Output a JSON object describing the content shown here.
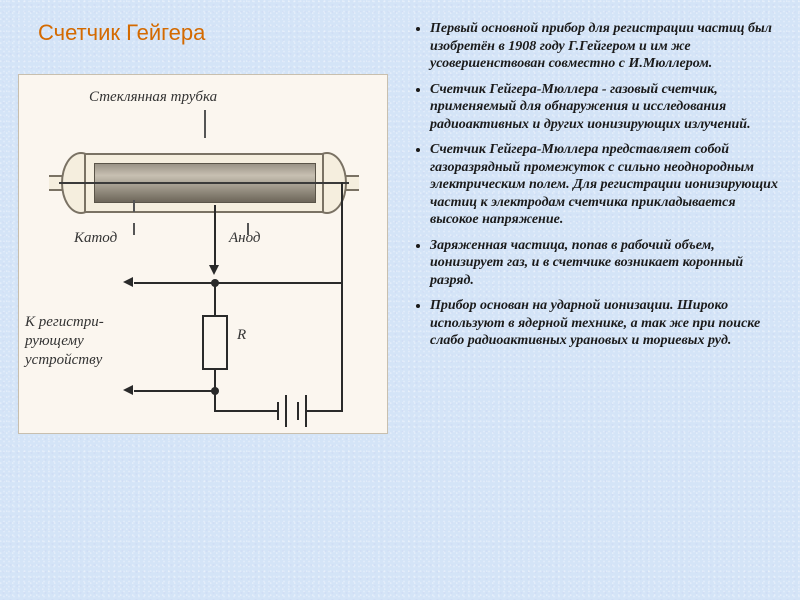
{
  "title": {
    "text": "Счетчик Гейгера",
    "color": "#d46a00"
  },
  "diagram": {
    "bg": "#fbf6ef",
    "labels": {
      "tube": "Стеклянная трубка",
      "cathode": "Катод",
      "anode": "Анод",
      "R": "R",
      "register": "К регистри-\nрующему\nустройству"
    },
    "colors": {
      "wire": "#2a2a2a",
      "tube_border": "#7a7264",
      "cathode_grad_top": "#9a9386",
      "cathode_grad_mid": "#c7c0b2",
      "cathode_grad_bot": "#6d6659"
    }
  },
  "bullets": [
    "Первый основной прибор для регистрации частиц был изобретён в 1908 году Г.Гейгером и им же усовершенствован совместно с И.Мюллером.",
    "Счетчик Гейгера-Мюллера - газовый счетчик, применяемый для обнаружения и исследования радиоактивных и других ионизирующих излучений.",
    "Счетчик Гейгера-Мюллера представляет собой газоразрядный промежуток с сильно неоднородным электрическим полем. Для регистрации ионизирующих частиц к электродам счетчика прикладывается высокое напряжение.",
    "Заряженная частица, попав в рабочий объем, ионизирует газ, и в счетчике возникает коронный разряд.",
    "Прибор основан на ударной ионизации. Широко используют в ядерной технике, а так же при поиске слабо радиоактивных урановых и ториевых руд."
  ],
  "page_bg": "#d4e4f7"
}
